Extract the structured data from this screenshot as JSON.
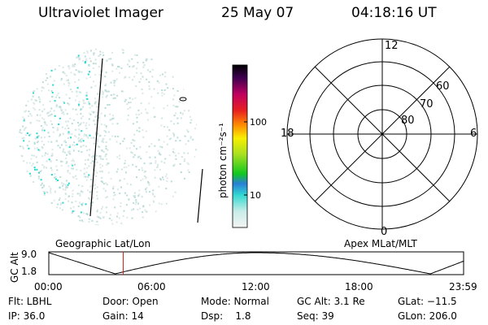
{
  "header": {
    "instrument": "Ultraviolet Imager",
    "date": "25 May 07",
    "time": "04:18:16 UT"
  },
  "colorbar": {
    "label": "photon cm⁻²s⁻¹",
    "ticks": [
      {
        "label": "100",
        "frac": 0.65
      },
      {
        "label": "10",
        "frac": 0.2
      }
    ]
  },
  "polar_plot": {
    "mlt_labels": {
      "top": "12",
      "left": "18",
      "right": "6",
      "bottom": "0"
    },
    "lat_labels": [
      "60",
      "70",
      "80"
    ]
  },
  "timeline": {
    "ylabel": "GC Alt",
    "y_ticks": [
      "9.0",
      "1.8"
    ],
    "left_title": "Geographic Lat/Lon",
    "right_title": "Apex MLat/MLT",
    "x_ticks": [
      "00:00",
      "06:00",
      "12:00",
      "18:00",
      "23:59"
    ],
    "marker_fraction": 0.1794
  },
  "info": {
    "row1": [
      {
        "key": "flt",
        "text": "Flt: LBHL"
      },
      {
        "key": "door",
        "text": "Door: Open"
      },
      {
        "key": "mode",
        "text": "Mode: Normal"
      },
      {
        "key": "gcalt",
        "text": "GC Alt: 3.1 Re"
      },
      {
        "key": "glat",
        "text": "GLat: −11.5"
      }
    ],
    "row2": [
      {
        "key": "ip",
        "text": "IP: 36.0"
      },
      {
        "key": "gain",
        "text": "Gain: 14"
      },
      {
        "key": "dsp",
        "text": "Dsp:    1.8"
      },
      {
        "key": "seq",
        "text": "Seq: 39"
      },
      {
        "key": "glon",
        "text": "GLon: 206.0"
      }
    ]
  },
  "colors": {
    "accent_cyan": "#22d8d0",
    "marker": "#cc2222"
  }
}
